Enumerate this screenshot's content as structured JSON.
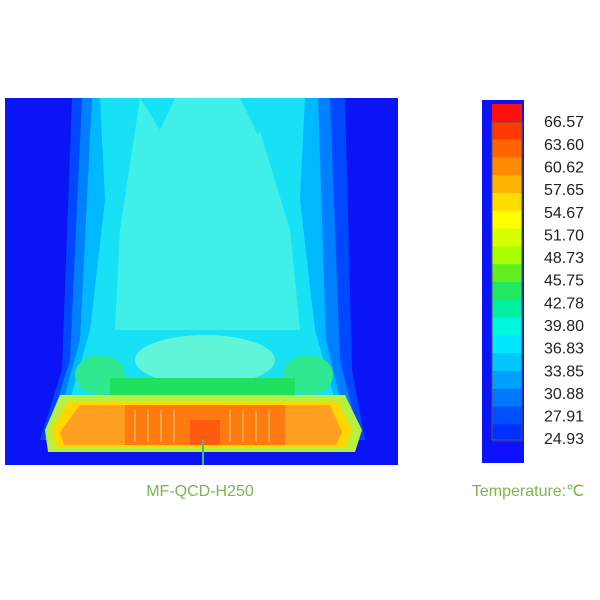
{
  "caption": "MF-QCD-H250",
  "colorbar": {
    "title": "Temperature:℃",
    "labels": [
      "66.57",
      "63.60",
      "60.62",
      "57.65",
      "54.67",
      "51.70",
      "48.73",
      "45.75",
      "42.78",
      "39.80",
      "36.83",
      "33.85",
      "30.88",
      "27.91",
      "24.93"
    ]
  }
}
